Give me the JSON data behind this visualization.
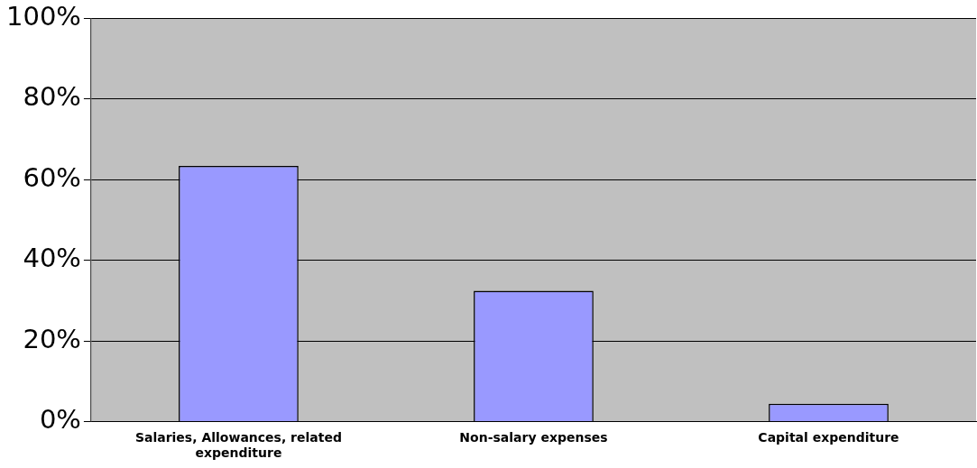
{
  "chart_data": {
    "type": "bar",
    "categories": [
      "Salaries, Allowances, related expenditure",
      "Non-salary expenses",
      "Capital expenditure"
    ],
    "values": [
      63.4,
      32.4,
      4.4
    ],
    "color": "#9999ff",
    "ylim": [
      0,
      100
    ],
    "yticks": [
      {
        "value": 0,
        "label": "0%"
      },
      {
        "value": 20,
        "label": "20%"
      },
      {
        "value": 40,
        "label": "40%"
      },
      {
        "value": 60,
        "label": "60%"
      },
      {
        "value": 80,
        "label": "80%"
      },
      {
        "value": 100,
        "label": "100%"
      }
    ],
    "grid": "y",
    "legend": false
  }
}
